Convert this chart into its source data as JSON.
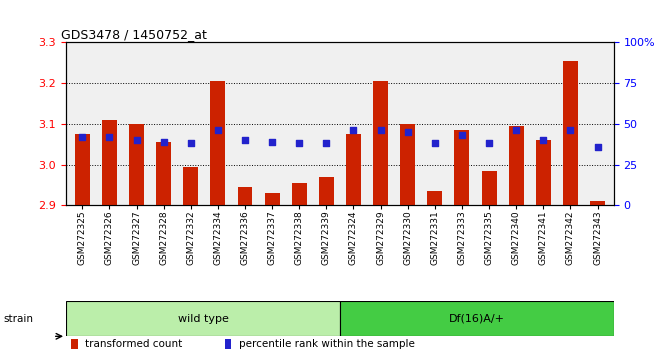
{
  "title": "GDS3478 / 1450752_at",
  "samples": [
    "GSM272325",
    "GSM272326",
    "GSM272327",
    "GSM272328",
    "GSM272332",
    "GSM272334",
    "GSM272336",
    "GSM272337",
    "GSM272338",
    "GSM272339",
    "GSM272324",
    "GSM272329",
    "GSM272330",
    "GSM272331",
    "GSM272333",
    "GSM272335",
    "GSM272340",
    "GSM272341",
    "GSM272342",
    "GSM272343"
  ],
  "red_values": [
    3.075,
    3.11,
    3.1,
    3.055,
    2.995,
    3.205,
    2.945,
    2.93,
    2.955,
    2.97,
    3.075,
    3.205,
    3.1,
    2.935,
    3.085,
    2.985,
    3.095,
    3.06,
    3.255,
    2.91
  ],
  "blue_values": [
    42,
    42,
    40,
    39,
    38,
    46,
    40,
    39,
    38,
    38,
    46,
    46,
    45,
    38,
    43,
    38,
    46,
    40,
    46,
    36
  ],
  "ymin": 2.9,
  "ymax": 3.3,
  "y2min": 0,
  "y2max": 100,
  "yticks": [
    2.9,
    3.0,
    3.1,
    3.2,
    3.3
  ],
  "y2ticks": [
    0,
    25,
    50,
    75,
    100
  ],
  "y2ticklabels": [
    "0",
    "25",
    "50",
    "75",
    "100%"
  ],
  "bar_color": "#cc2200",
  "dot_color": "#2222cc",
  "wild_type_count": 10,
  "df_count": 10,
  "strain_label1": "wild type",
  "strain_label2": "Df(16)A/+",
  "legend_items": [
    "transformed count",
    "percentile rank within the sample"
  ],
  "legend_colors": [
    "#cc2200",
    "#2222cc"
  ],
  "bar_width": 0.55,
  "strain_color1": "#bbeeaa",
  "strain_color2": "#44cc44",
  "plot_bg": "#f0f0f0"
}
